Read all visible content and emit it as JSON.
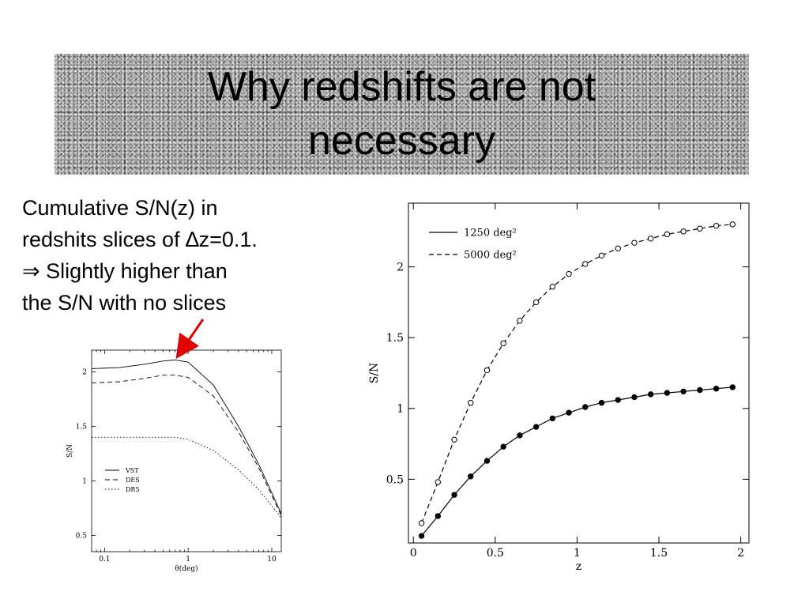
{
  "slide": {
    "title": "Why redshifts are not necessary",
    "text_lines": [
      "Cumulative S/N(z) in",
      "redshits slices of ∆z=0.1.",
      "⇒ Slightly higher than",
      "the S/N with no slices"
    ],
    "arrow_color": "#e00000"
  },
  "chart_data": [
    {
      "type": "line",
      "xlabel": "θ(deg)",
      "ylabel": "S/N",
      "x_scale": "log",
      "xlim": [
        0.07,
        13
      ],
      "ylim": [
        0.35,
        2.2
      ],
      "xticks": [
        0.1,
        1,
        10
      ],
      "xtick_labels": [
        "0.1",
        "1",
        "10"
      ],
      "yticks": [
        0.5,
        1,
        1.5,
        2
      ],
      "ytick_labels": [
        "0.5",
        "1",
        "1.5",
        "2"
      ],
      "legend_position": "center-left",
      "grid": false,
      "series": [
        {
          "name": "VST",
          "style": "solid",
          "x": [
            0.07,
            0.15,
            0.3,
            0.5,
            0.7,
            1,
            2,
            4,
            7,
            13
          ],
          "y": [
            2.03,
            2.04,
            2.07,
            2.1,
            2.11,
            2.09,
            1.88,
            1.5,
            1.15,
            0.7
          ]
        },
        {
          "name": "DES",
          "style": "dashed",
          "x": [
            0.07,
            0.15,
            0.3,
            0.5,
            0.7,
            1,
            2,
            4,
            7,
            13
          ],
          "y": [
            1.9,
            1.91,
            1.94,
            1.97,
            1.97,
            1.95,
            1.78,
            1.45,
            1.12,
            0.68
          ]
        },
        {
          "name": "DR5",
          "style": "dotted",
          "x": [
            0.07,
            0.15,
            0.3,
            0.5,
            0.7,
            1,
            2,
            4,
            7,
            13
          ],
          "y": [
            1.4,
            1.4,
            1.4,
            1.4,
            1.4,
            1.38,
            1.28,
            1.1,
            0.92,
            0.66
          ]
        }
      ]
    },
    {
      "type": "line",
      "xlabel": "z",
      "ylabel": "S/N",
      "xlim": [
        -0.03,
        2.05
      ],
      "ylim": [
        0.05,
        2.45
      ],
      "xticks": [
        0,
        0.5,
        1,
        1.5,
        2
      ],
      "xtick_labels": [
        "0",
        "0.5",
        "1",
        "1.5",
        "2"
      ],
      "yticks": [
        0.5,
        1,
        1.5,
        2
      ],
      "ytick_labels": [
        "0.5",
        "1",
        "1.5",
        "2"
      ],
      "legend_position": "top-left",
      "grid": false,
      "series": [
        {
          "name": "1250 deg²",
          "style": "solid",
          "marker": "filled-circle",
          "x": [
            0.05,
            0.15,
            0.25,
            0.35,
            0.45,
            0.55,
            0.65,
            0.75,
            0.85,
            0.95,
            1.05,
            1.15,
            1.25,
            1.35,
            1.45,
            1.55,
            1.65,
            1.75,
            1.85,
            1.95
          ],
          "y": [
            0.1,
            0.24,
            0.39,
            0.52,
            0.63,
            0.73,
            0.81,
            0.87,
            0.93,
            0.97,
            1.01,
            1.04,
            1.06,
            1.08,
            1.1,
            1.11,
            1.12,
            1.13,
            1.14,
            1.15
          ]
        },
        {
          "name": "5000 deg²",
          "style": "dashed",
          "marker": "open-circle",
          "x": [
            0.05,
            0.15,
            0.25,
            0.35,
            0.45,
            0.55,
            0.65,
            0.75,
            0.85,
            0.95,
            1.05,
            1.15,
            1.25,
            1.35,
            1.45,
            1.55,
            1.65,
            1.75,
            1.85,
            1.95
          ],
          "y": [
            0.19,
            0.48,
            0.78,
            1.04,
            1.27,
            1.46,
            1.62,
            1.75,
            1.86,
            1.95,
            2.02,
            2.08,
            2.13,
            2.17,
            2.2,
            2.23,
            2.25,
            2.27,
            2.29,
            2.3
          ]
        }
      ]
    }
  ]
}
